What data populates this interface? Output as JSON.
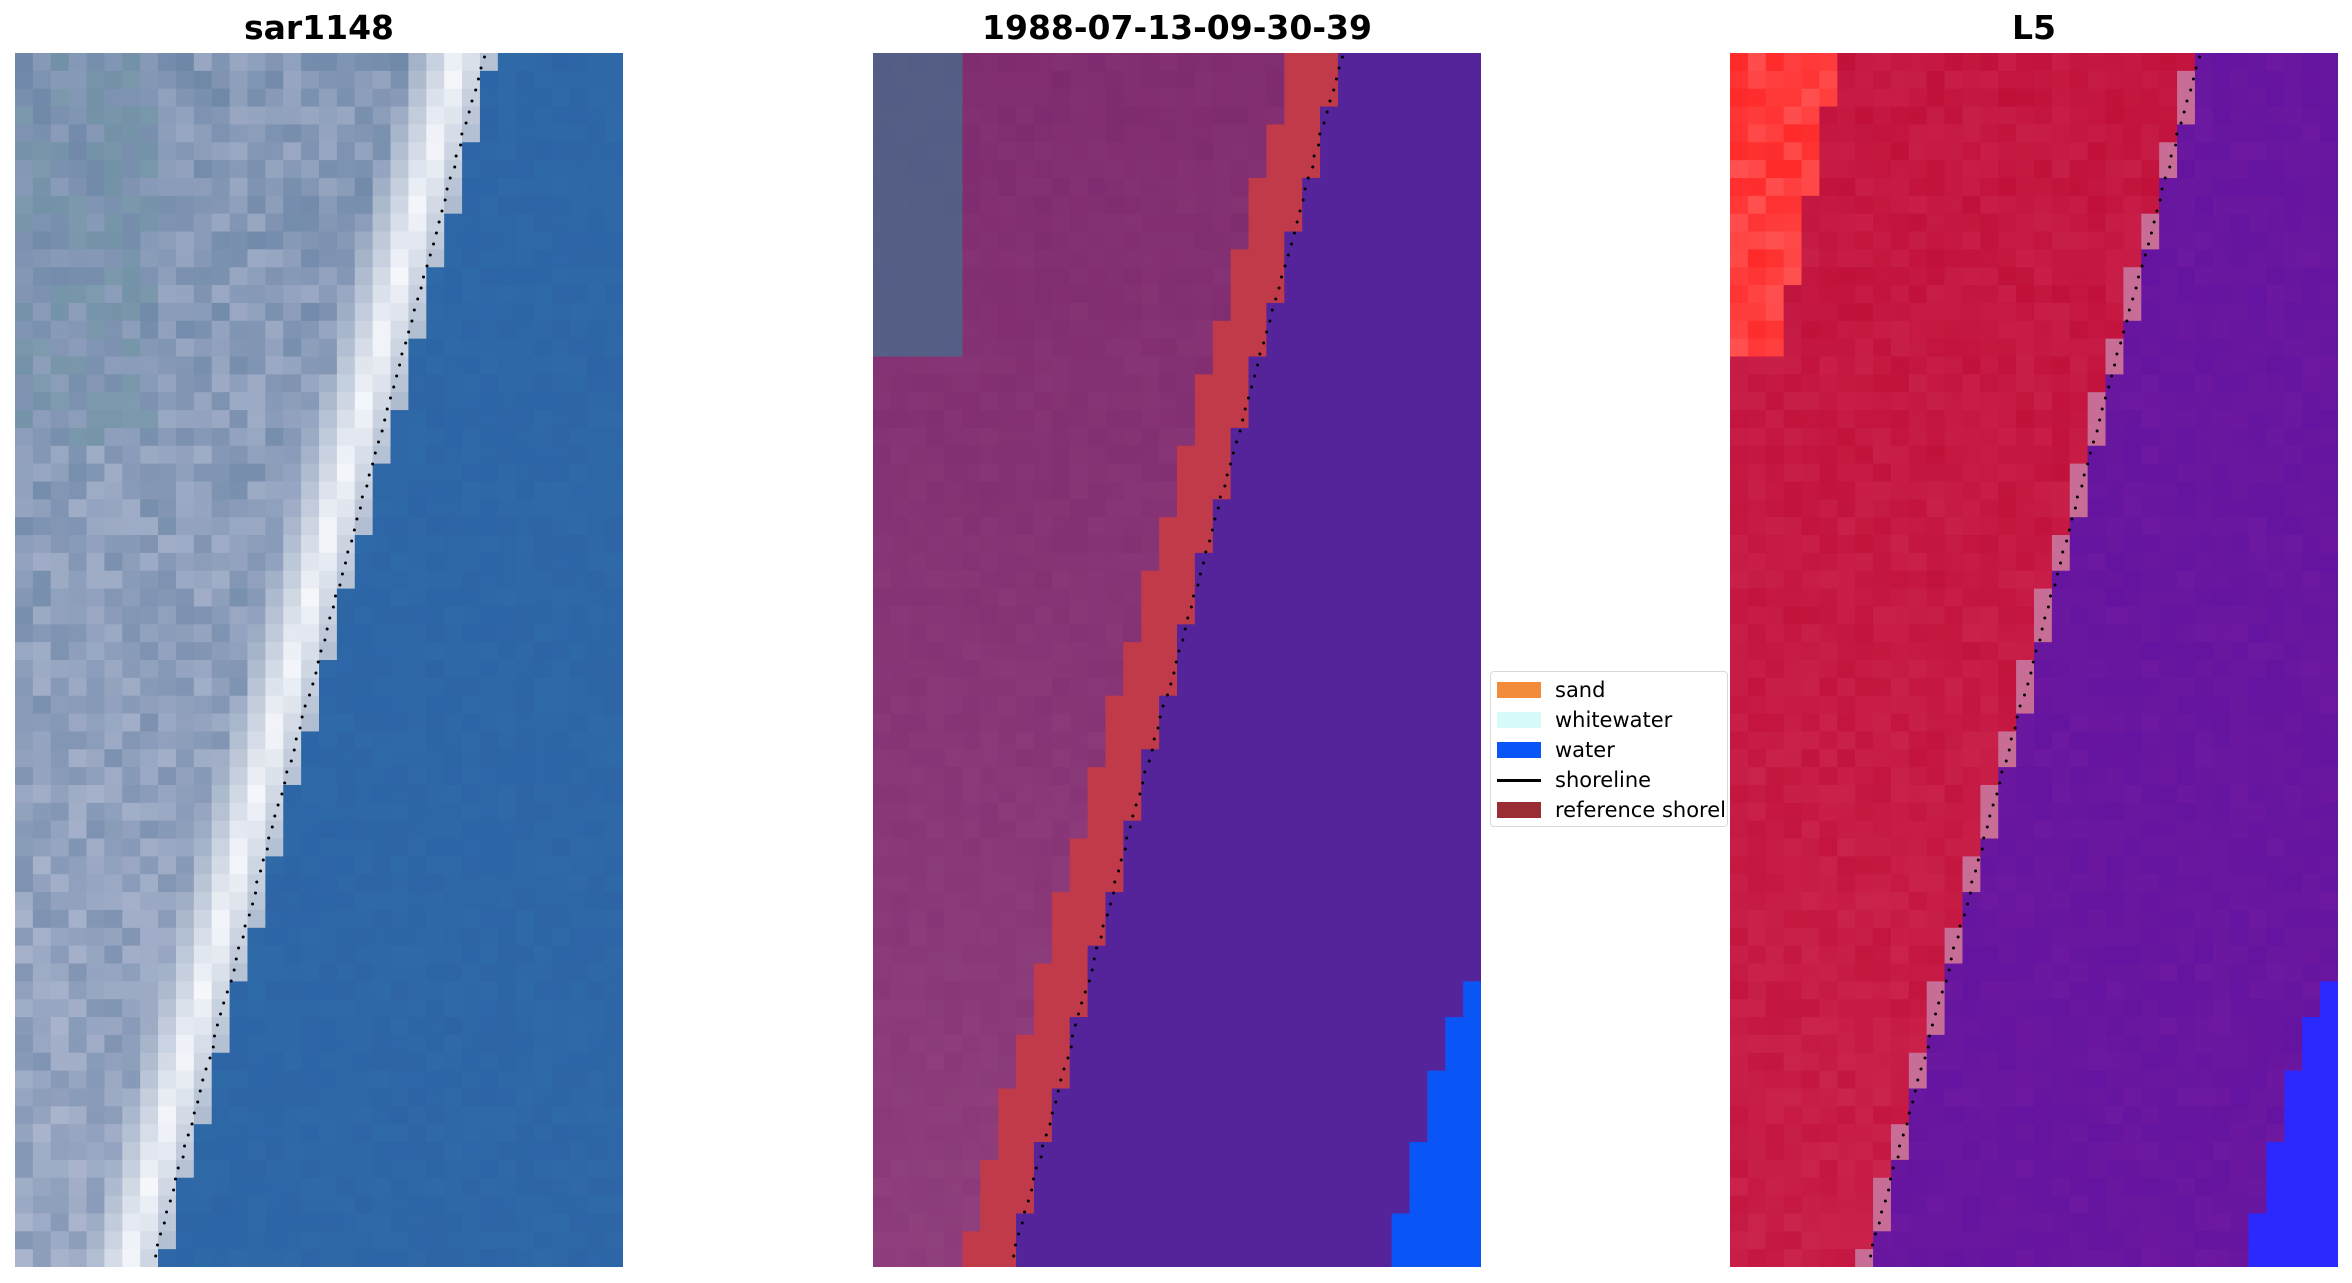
{
  "panels": [
    {
      "title": "sar1148"
    },
    {
      "title": "1988-07-13-09-30-39"
    },
    {
      "title": "L5"
    }
  ],
  "legend": {
    "items": [
      {
        "label": "sand",
        "color": "#f28c3a",
        "kind": "patch"
      },
      {
        "label": "whitewater",
        "color": "#d7fbf9",
        "kind": "patch"
      },
      {
        "label": "water",
        "color": "#0a55f5",
        "kind": "patch"
      },
      {
        "label": "shoreline",
        "color": "#000000",
        "kind": "line"
      },
      {
        "label": "reference shoreline",
        "color": "#9a2c33",
        "kind": "patch"
      }
    ]
  },
  "colors": {
    "water_rgb": "#2f6aa8",
    "whitewater_rgb": "#f5f7fb",
    "sand_rgb": "#6f88a8",
    "class_water": "#55249a",
    "class_land": "#7e2a6e",
    "class_reference": "#c03a4a",
    "class_blue_corner": "#0a55f5",
    "index_land": "#c0103a",
    "index_water": "#6414a0",
    "index_red_corner": "#ff2a2a",
    "index_blue_corner": "#2a2aff"
  }
}
